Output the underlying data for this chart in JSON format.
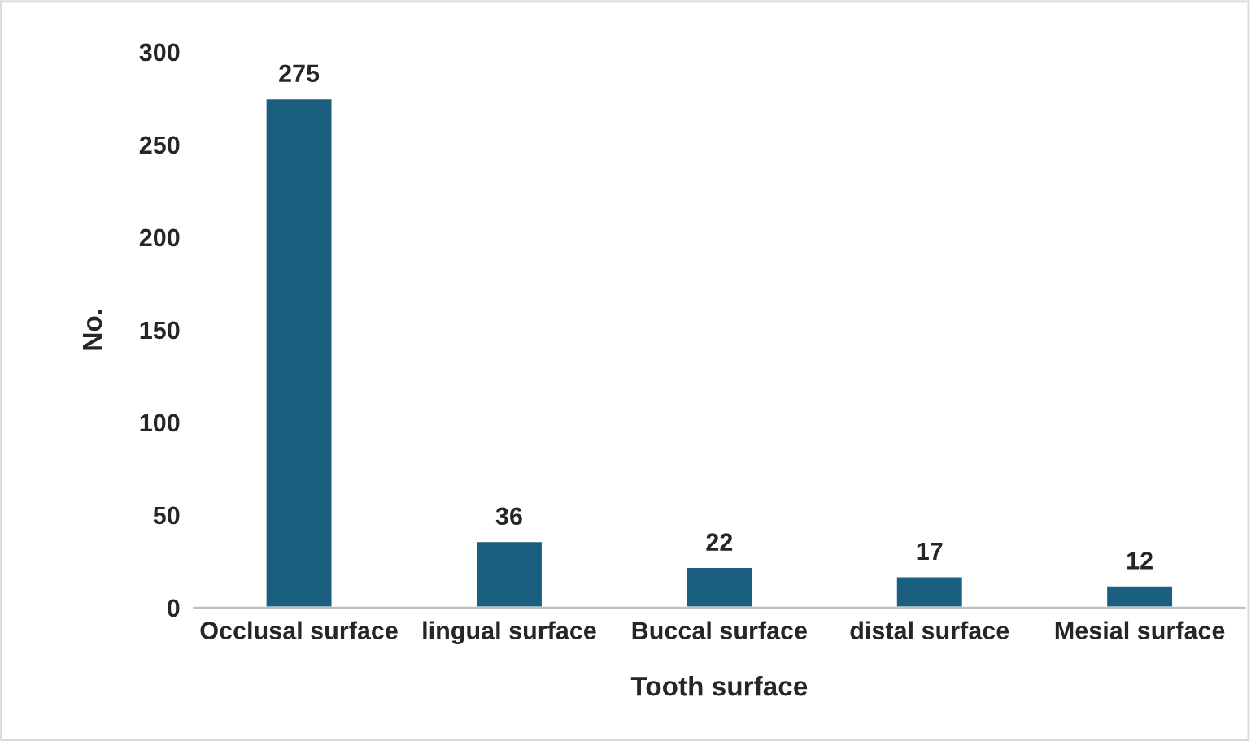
{
  "chart_data": {
    "type": "bar",
    "xlabel": "Tooth surface",
    "ylabel": "No.",
    "categories": [
      "Occlusal surface",
      "lingual surface",
      "Buccal surface",
      "distal surface",
      "Mesial surface"
    ],
    "values": [
      275,
      36,
      22,
      17,
      12
    ],
    "color": "#1a5e80",
    "ylim": [
      0,
      300
    ],
    "yticks": [
      0,
      50,
      100,
      150,
      200,
      250,
      300
    ],
    "grid": false,
    "data_labels": true
  }
}
